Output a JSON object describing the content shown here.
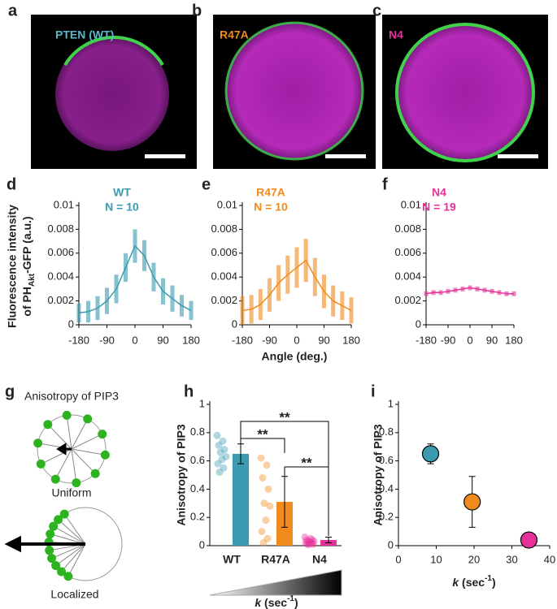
{
  "panel_labels": [
    "a",
    "b",
    "c",
    "d",
    "e",
    "f",
    "g",
    "h",
    "i"
  ],
  "images": [
    {
      "label": "PTEN (WT)"
    },
    {
      "label": "R47A"
    },
    {
      "label": "N4"
    }
  ],
  "diagram": {
    "title": "Anisotropy of PIP3",
    "labels": [
      "Uniform",
      "Localized"
    ]
  },
  "chart_data": [
    {
      "type": "line",
      "ylabel": [
        "Fluorescence intensity",
        "of PH",
        "Akt",
        "-GFP (a.u.)"
      ],
      "x": [
        -180,
        -150,
        -120,
        -90,
        -60,
        -30,
        0,
        30,
        60,
        90,
        120,
        150,
        180
      ],
      "xlim": [
        -180,
        180
      ],
      "xticks": [
        -180,
        -90,
        0,
        90,
        180
      ],
      "ylim": [
        0,
        0.01
      ],
      "yticks": [
        0,
        0.002,
        0.004,
        0.006,
        0.008,
        0.01
      ],
      "series": [
        {
          "name": "WT",
          "annotation": "N = 10",
          "color": "#3a9bb0",
          "values": [
            0.001,
            0.0011,
            0.0014,
            0.002,
            0.003,
            0.0048,
            0.0066,
            0.0058,
            0.004,
            0.0028,
            0.0022,
            0.0016,
            0.0012
          ],
          "errors": [
            0.0008,
            0.0009,
            0.001,
            0.0011,
            0.0012,
            0.0012,
            0.0014,
            0.0013,
            0.0012,
            0.0011,
            0.0011,
            0.0009,
            0.0008
          ]
        }
      ]
    },
    {
      "type": "line",
      "xlabel": "Angle (deg.)",
      "x": [
        -180,
        -150,
        -120,
        -90,
        -60,
        -30,
        0,
        30,
        60,
        90,
        120,
        150,
        180
      ],
      "xlim": [
        -180,
        180
      ],
      "xticks": [
        -180,
        -90,
        0,
        90,
        180
      ],
      "ylim": [
        0,
        0.01
      ],
      "yticks": [
        0,
        0.002,
        0.004,
        0.006,
        0.008,
        0.01
      ],
      "series": [
        {
          "name": "R47A",
          "annotation": "N = 10",
          "color": "#f08a1c",
          "values": [
            0.0012,
            0.0013,
            0.0017,
            0.0025,
            0.0035,
            0.0042,
            0.0048,
            0.0054,
            0.004,
            0.0028,
            0.002,
            0.0016,
            0.0012
          ],
          "errors": [
            0.0012,
            0.0012,
            0.0013,
            0.0014,
            0.0015,
            0.0016,
            0.0017,
            0.0018,
            0.0016,
            0.0014,
            0.0013,
            0.0012,
            0.0011
          ]
        }
      ]
    },
    {
      "type": "line",
      "x": [
        -180,
        -150,
        -120,
        -90,
        -60,
        -30,
        0,
        30,
        60,
        90,
        120,
        150,
        180
      ],
      "xlim": [
        -180,
        180
      ],
      "xticks": [
        -180,
        -90,
        0,
        90,
        180
      ],
      "ylim": [
        0,
        0.01
      ],
      "yticks": [
        0,
        0.002,
        0.004,
        0.006,
        0.008,
        0.01
      ],
      "series": [
        {
          "name": "N4",
          "annotation": "N = 19",
          "color": "#e6309a",
          "values": [
            0.0026,
            0.0027,
            0.0027,
            0.0028,
            0.0029,
            0.003,
            0.0031,
            0.003,
            0.0029,
            0.0028,
            0.0027,
            0.0026,
            0.0026
          ],
          "errors": [
            0.0002,
            0.0002,
            0.0002,
            0.0002,
            0.0002,
            0.0002,
            0.0002,
            0.0002,
            0.0002,
            0.0002,
            0.0002,
            0.0002,
            0.0002
          ]
        }
      ]
    },
    {
      "type": "bar",
      "ylabel": "Anisotropy of PIP3",
      "xlabel": [
        "k",
        " (sec",
        "-1",
        ")"
      ],
      "categories": [
        "WT",
        "R47A",
        "N4"
      ],
      "values": [
        0.65,
        0.31,
        0.04
      ],
      "errors": [
        0.07,
        0.18,
        0.02
      ],
      "colors": [
        "#3a9bb0",
        "#f08a1c",
        "#e6309a"
      ],
      "points": [
        [
          0.78,
          0.74,
          0.71,
          0.68,
          0.66,
          0.63,
          0.61,
          0.58,
          0.55,
          0.52
        ],
        [
          0.62,
          0.57,
          0.48,
          0.4,
          0.3,
          0.28,
          0.18,
          0.1,
          0.05,
          0.02
        ],
        [
          0.06,
          0.05,
          0.04,
          0.04,
          0.03,
          0.03,
          0.02,
          0.02,
          0.02,
          0.01,
          0.01,
          0.01
        ]
      ],
      "ylim": [
        0,
        1
      ],
      "yticks": [
        0,
        0.2,
        0.4,
        0.6,
        0.8,
        1
      ],
      "significance": [
        {
          "between": [
            0,
            1
          ],
          "label": "**"
        },
        {
          "between": [
            0,
            2
          ],
          "label": "**"
        },
        {
          "between": [
            1,
            2
          ],
          "label": "**"
        }
      ]
    },
    {
      "type": "scatter",
      "ylabel": "Anisotropy of PIP3",
      "xlabel": [
        "k",
        " (sec",
        "-1",
        ")"
      ],
      "x": [
        8.5,
        19.5,
        34.5
      ],
      "y": [
        0.65,
        0.31,
        0.04
      ],
      "xerr": [
        1,
        1.5,
        2
      ],
      "yerr": [
        0.07,
        0.18,
        0.02
      ],
      "colors": [
        "#3a9bb0",
        "#f08a1c",
        "#e6309a"
      ],
      "xlim": [
        0,
        40
      ],
      "xticks": [
        0,
        10,
        20,
        30,
        40
      ],
      "ylim": [
        0,
        1
      ],
      "yticks": [
        0,
        0.2,
        0.4,
        0.6,
        0.8,
        1
      ]
    }
  ]
}
